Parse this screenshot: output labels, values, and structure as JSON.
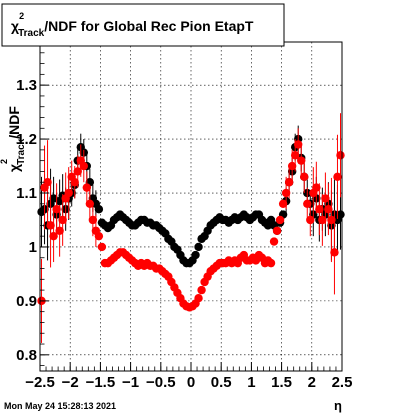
{
  "chart_data": {
    "type": "scatter",
    "title": "/NDF for Global Rec Pion EtapT",
    "title_symbol": "χ",
    "title_sup": "2",
    "title_sub": "Track",
    "xlabel": "η",
    "ylabel": "/NDF",
    "ylabel_symbol": "χ",
    "ylabel_sup": "2",
    "ylabel_sub": "Track",
    "xlim": [
      -2.5,
      2.5
    ],
    "ylim": [
      0.77,
      1.38
    ],
    "x_ticks": [
      "−2.5",
      "−2",
      "−1.5",
      "−1",
      "−0.5",
      "0",
      "0.5",
      "1",
      "1.5",
      "2",
      "2.5"
    ],
    "x_tick_values": [
      -2.5,
      -2,
      -1.5,
      -1,
      -0.5,
      0,
      0.5,
      1,
      1.5,
      2,
      2.5
    ],
    "y_ticks": [
      "0.8",
      "0.9",
      "1",
      "1.1",
      "1.2",
      "1.3"
    ],
    "y_tick_values": [
      0.8,
      0.9,
      1.0,
      1.1,
      1.2,
      1.3
    ],
    "grid": true,
    "series": [
      {
        "color": "#000000",
        "x": [
          -2.475,
          -2.425,
          -2.375,
          -2.325,
          -2.275,
          -2.225,
          -2.175,
          -2.125,
          -2.075,
          -2.025,
          -1.975,
          -1.925,
          -1.875,
          -1.825,
          -1.775,
          -1.725,
          -1.675,
          -1.625,
          -1.575,
          -1.525,
          -1.475,
          -1.425,
          -1.375,
          -1.325,
          -1.275,
          -1.225,
          -1.175,
          -1.125,
          -1.075,
          -1.025,
          -0.975,
          -0.925,
          -0.875,
          -0.825,
          -0.775,
          -0.725,
          -0.675,
          -0.625,
          -0.575,
          -0.525,
          -0.475,
          -0.425,
          -0.375,
          -0.325,
          -0.275,
          -0.225,
          -0.175,
          -0.125,
          -0.075,
          -0.025,
          0.025,
          0.075,
          0.125,
          0.175,
          0.225,
          0.275,
          0.325,
          0.375,
          0.425,
          0.475,
          0.525,
          0.575,
          0.625,
          0.675,
          0.725,
          0.775,
          0.825,
          0.875,
          0.925,
          0.975,
          1.025,
          1.075,
          1.125,
          1.175,
          1.225,
          1.275,
          1.325,
          1.375,
          1.425,
          1.475,
          1.525,
          1.575,
          1.625,
          1.675,
          1.725,
          1.775,
          1.825,
          1.875,
          1.925,
          1.975,
          2.025,
          2.075,
          2.125,
          2.175,
          2.225,
          2.275,
          2.325,
          2.375,
          2.425,
          2.475
        ],
        "y": [
          1.065,
          1.07,
          1.04,
          1.08,
          1.09,
          1.06,
          1.085,
          1.095,
          1.07,
          1.09,
          1.1,
          1.115,
          1.16,
          1.185,
          1.175,
          1.15,
          1.12,
          1.09,
          1.08,
          1.07,
          1.045,
          1.04,
          1.035,
          1.04,
          1.05,
          1.055,
          1.06,
          1.055,
          1.05,
          1.045,
          1.04,
          1.04,
          1.045,
          1.05,
          1.05,
          1.045,
          1.045,
          1.04,
          1.04,
          1.035,
          1.03,
          1.025,
          1.015,
          1.01,
          1.0,
          0.995,
          0.985,
          0.975,
          0.97,
          0.97,
          0.975,
          0.985,
          1.0,
          1.015,
          1.02,
          1.03,
          1.04,
          1.045,
          1.05,
          1.055,
          1.05,
          1.05,
          1.045,
          1.05,
          1.055,
          1.05,
          1.055,
          1.06,
          1.055,
          1.05,
          1.055,
          1.06,
          1.06,
          1.05,
          1.045,
          1.04,
          1.05,
          1.04,
          1.03,
          1.045,
          1.06,
          1.085,
          1.12,
          1.14,
          1.185,
          1.2,
          1.165,
          1.13,
          1.1,
          1.08,
          1.06,
          1.09,
          1.05,
          1.07,
          1.06,
          1.08,
          1.04,
          1.06,
          1.05,
          1.06
        ]
      },
      {
        "color": "#ff0000",
        "x": [
          -2.475,
          -2.425,
          -2.375,
          -2.325,
          -2.275,
          -2.225,
          -2.175,
          -2.125,
          -2.075,
          -2.025,
          -1.975,
          -1.925,
          -1.875,
          -1.825,
          -1.775,
          -1.725,
          -1.675,
          -1.625,
          -1.575,
          -1.525,
          -1.475,
          -1.425,
          -1.375,
          -1.325,
          -1.275,
          -1.225,
          -1.175,
          -1.125,
          -1.075,
          -1.025,
          -0.975,
          -0.925,
          -0.875,
          -0.825,
          -0.775,
          -0.725,
          -0.675,
          -0.625,
          -0.575,
          -0.525,
          -0.475,
          -0.425,
          -0.375,
          -0.325,
          -0.275,
          -0.225,
          -0.175,
          -0.125,
          -0.075,
          -0.025,
          0.025,
          0.075,
          0.125,
          0.175,
          0.225,
          0.275,
          0.325,
          0.375,
          0.425,
          0.475,
          0.525,
          0.575,
          0.625,
          0.675,
          0.725,
          0.775,
          0.825,
          0.875,
          0.925,
          0.975,
          1.025,
          1.075,
          1.125,
          1.175,
          1.225,
          1.275,
          1.325,
          1.375,
          1.425,
          1.475,
          1.525,
          1.575,
          1.625,
          1.675,
          1.725,
          1.775,
          1.825,
          1.875,
          1.925,
          1.975,
          2.025,
          2.075,
          2.125,
          2.175,
          2.225,
          2.275,
          2.325,
          2.375,
          2.425,
          2.475
        ],
        "y": [
          0.9,
          1.11,
          1.12,
          1.04,
          1.02,
          1.07,
          1.03,
          1.05,
          1.09,
          1.1,
          1.13,
          1.12,
          1.14,
          1.16,
          1.15,
          1.11,
          1.08,
          1.05,
          1.03,
          1.02,
          1.0,
          0.97,
          0.97,
          0.975,
          0.98,
          0.985,
          0.99,
          0.99,
          0.985,
          0.98,
          0.975,
          0.97,
          0.965,
          0.97,
          0.965,
          0.97,
          0.965,
          0.965,
          0.96,
          0.96,
          0.955,
          0.95,
          0.945,
          0.935,
          0.925,
          0.915,
          0.905,
          0.895,
          0.89,
          0.888,
          0.89,
          0.895,
          0.905,
          0.92,
          0.935,
          0.945,
          0.955,
          0.96,
          0.965,
          0.97,
          0.97,
          0.97,
          0.975,
          0.97,
          0.975,
          0.97,
          0.98,
          0.985,
          0.975,
          0.975,
          0.98,
          0.975,
          0.985,
          0.98,
          0.97,
          0.975,
          0.97,
          1.01,
          1.03,
          1.05,
          1.08,
          1.1,
          1.12,
          1.15,
          1.17,
          1.19,
          1.16,
          1.13,
          1.08,
          1.05,
          1.1,
          1.11,
          1.07,
          1.05,
          1.09,
          1.07,
          1.05,
          0.99,
          1.13,
          1.17
        ]
      }
    ]
  },
  "timestamp": "Mon May 24 15:28:13 2021"
}
